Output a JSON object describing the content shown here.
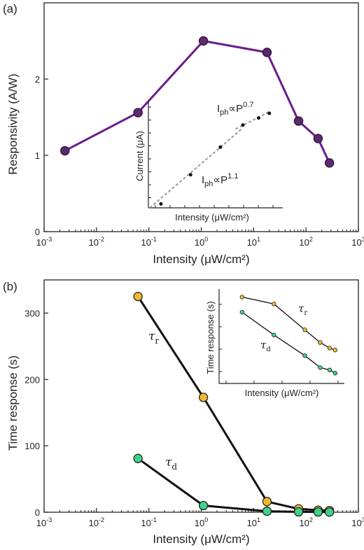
{
  "chart_data": [
    {
      "id": "a",
      "panel_label": "(a)",
      "type": "line",
      "xlabel": "Intensity (μW/cm²)",
      "ylabel": "Responsivity (A/W)",
      "x_scale": "log",
      "xlim": [
        0.001,
        1000
      ],
      "ylim": [
        0,
        3
      ],
      "x_ticks": [
        {
          "value": 0.001,
          "base": "10",
          "exp": "-3"
        },
        {
          "value": 0.01,
          "base": "10",
          "exp": "-2"
        },
        {
          "value": 0.1,
          "base": "10",
          "exp": "-1"
        },
        {
          "value": 1,
          "base": "10",
          "exp": "0"
        },
        {
          "value": 10,
          "base": "10",
          "exp": "1"
        },
        {
          "value": 100,
          "base": "10",
          "exp": "2"
        },
        {
          "value": 1000,
          "base": "10",
          "exp": "3"
        }
      ],
      "y_ticks": [
        0,
        1,
        2
      ],
      "series": [
        {
          "color": "#6a1b8a",
          "x": [
            0.0025,
            0.062,
            1.1,
            18,
            72,
            170,
            280
          ],
          "y": [
            1.06,
            1.56,
            2.5,
            2.35,
            1.45,
            1.22,
            0.9
          ]
        }
      ],
      "inset": {
        "type": "scatter",
        "xlabel": "Intensity (μW/cm²)",
        "ylabel": "Current (μA)",
        "x": [
          0.17,
          0.7,
          2.9,
          8.5,
          18,
          30
        ],
        "y": [
          0.0,
          0.37,
          0.72,
          1.0,
          1.09,
          1.15
        ],
        "fit_lines": [
          {
            "x": [
              0.1,
              8
            ],
            "y": [
              -0.05,
              0.95
            ]
          },
          {
            "x": [
              6,
              30
            ],
            "y": [
              0.95,
              1.17
            ]
          }
        ],
        "annotations": [
          {
            "base": "I",
            "sub": "ph",
            "rel": "∝P",
            "sup": "1.1"
          },
          {
            "base": "I",
            "sub": "ph",
            "rel": "∝P",
            "sup": "0.7"
          }
        ]
      }
    },
    {
      "id": "b",
      "panel_label": "(b)",
      "type": "line",
      "xlabel": "Intensity (μW/cm²)",
      "ylabel": "Time response (s)",
      "x_scale": "log",
      "xlim": [
        0.001,
        1000
      ],
      "ylim": [
        0,
        350
      ],
      "x_ticks": [
        {
          "value": 0.001,
          "base": "10",
          "exp": "-3"
        },
        {
          "value": 0.01,
          "base": "10",
          "exp": "-2"
        },
        {
          "value": 0.1,
          "base": "10",
          "exp": "-1"
        },
        {
          "value": 1,
          "base": "10",
          "exp": "0"
        },
        {
          "value": 10,
          "base": "10",
          "exp": "1"
        },
        {
          "value": 100,
          "base": "10",
          "exp": "2"
        },
        {
          "value": 1000,
          "base": "10",
          "exp": "3"
        }
      ],
      "y_ticks": [
        0,
        100,
        200,
        300
      ],
      "series": [
        {
          "name": "τr",
          "greek": "τ",
          "sub": "r",
          "color": "#f2b930",
          "x": [
            0.062,
            1.1,
            18,
            72,
            170,
            280
          ],
          "y": [
            325,
            173,
            16,
            5,
            3,
            2.5
          ]
        },
        {
          "name": "τd",
          "greek": "τ",
          "sub": "d",
          "color": "#3fd38a",
          "x": [
            0.062,
            1.1,
            18,
            72,
            170,
            280
          ],
          "y": [
            81,
            10,
            1.5,
            0.5,
            0.4,
            0.3
          ]
        }
      ],
      "inset": {
        "type": "line",
        "xlabel": "Intensity (μW/cm²)",
        "ylabel": "Time response (s)",
        "x_scale": "log",
        "y_scale": "log",
        "series": [
          {
            "name": "τr",
            "greek": "τ",
            "sub": "r",
            "color": "#f2b930",
            "x": [
              0.062,
              1.1,
              18,
              72,
              170,
              280
            ],
            "y": [
              325,
              173,
              16,
              5,
              3,
              2.5
            ]
          },
          {
            "name": "τd",
            "greek": "τ",
            "sub": "d",
            "color": "#3fd38a",
            "x": [
              0.062,
              1.1,
              18,
              72,
              170,
              280
            ],
            "y": [
              81,
              10,
              1.5,
              0.5,
              0.4,
              0.3
            ]
          }
        ]
      }
    }
  ]
}
